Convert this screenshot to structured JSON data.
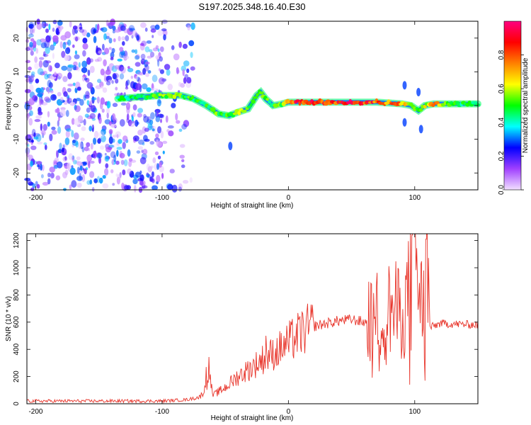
{
  "title": "S197.2025.348.16.40.E30",
  "chart_data": [
    {
      "type": "heatmap",
      "title": "S197.2025.348.16.40.E30",
      "xlabel": "Height of straight line (km)",
      "ylabel": "Frequency (Hz)",
      "xlim": [
        -207,
        150
      ],
      "ylim": [
        -25,
        25
      ],
      "xticks": [
        -200,
        -100,
        0,
        100
      ],
      "yticks": [
        -20,
        -10,
        0,
        10,
        20
      ],
      "colorbar": {
        "label": "Normalized spectral amplitude",
        "range": [
          0,
          1
        ],
        "ticks": [
          "0.0",
          "0.2",
          "0.4",
          "0.6",
          "0.8"
        ],
        "tick_values": [
          0.0,
          0.2,
          0.4,
          0.6,
          0.8
        ],
        "colors": [
          "#f2e0ff",
          "#a040ff",
          "#0000ff",
          "#00ffff",
          "#00ff00",
          "#ffff00",
          "#ff8000",
          "#ff0000",
          "#ff0080"
        ]
      },
      "ridge": {
        "description": "dominant frequency trace vs height",
        "x": [
          -135,
          -120,
          -100,
          -85,
          -75,
          -65,
          -55,
          -47,
          -40,
          -32,
          -25,
          -22,
          -18,
          -12,
          -5,
          0,
          10,
          30,
          50,
          70,
          90,
          97,
          103,
          108,
          115,
          130,
          150
        ],
        "y": [
          2,
          2.5,
          3,
          3,
          2,
          0,
          -2.5,
          -3,
          -2,
          -1,
          3,
          4,
          2,
          0,
          0.5,
          1,
          1,
          1,
          1,
          1,
          0.5,
          0,
          -1.5,
          0,
          0.5,
          0.5,
          0.5
        ],
        "amplitude": [
          0.45,
          0.5,
          0.55,
          0.55,
          0.5,
          0.5,
          0.55,
          0.5,
          0.6,
          0.55,
          0.6,
          0.6,
          0.55,
          0.5,
          0.55,
          0.85,
          0.9,
          0.9,
          0.9,
          0.85,
          0.75,
          0.6,
          0.5,
          0.6,
          0.85,
          0.5,
          0.45
        ]
      },
      "noise_region_x": [
        -207,
        -75
      ]
    },
    {
      "type": "line",
      "xlabel": "Height of straight line (km)",
      "ylabel": "SNR (10 * v/v)",
      "xlim": [
        -207,
        150
      ],
      "ylim": [
        0,
        1250
      ],
      "xticks": [
        -200,
        -100,
        0,
        100
      ],
      "yticks": [
        0,
        200,
        400,
        600,
        800,
        1000,
        1200
      ],
      "color": "#e8352b",
      "envelope": {
        "x": [
          -207,
          -150,
          -100,
          -80,
          -70,
          -65,
          -63,
          -60,
          -50,
          -40,
          -30,
          -20,
          -10,
          0,
          10,
          20,
          30,
          40,
          50,
          60,
          65,
          70,
          80,
          90,
          95,
          100,
          105,
          110,
          112,
          120,
          150
        ],
        "y": [
          20,
          20,
          20,
          30,
          50,
          120,
          270,
          60,
          120,
          200,
          260,
          330,
          380,
          450,
          520,
          570,
          590,
          610,
          620,
          600,
          600,
          640,
          700,
          660,
          800,
          1240,
          700,
          1200,
          560,
          590,
          580
        ]
      },
      "spikes": [
        {
          "x": -65,
          "y": 270
        },
        {
          "x": -18,
          "y": 500
        },
        {
          "x": 66,
          "y": 880
        },
        {
          "x": 98,
          "y": 1240
        },
        {
          "x": 109,
          "y": 1210
        },
        {
          "x": 96,
          "y": 140
        },
        {
          "x": 108,
          "y": 170
        }
      ]
    }
  ]
}
